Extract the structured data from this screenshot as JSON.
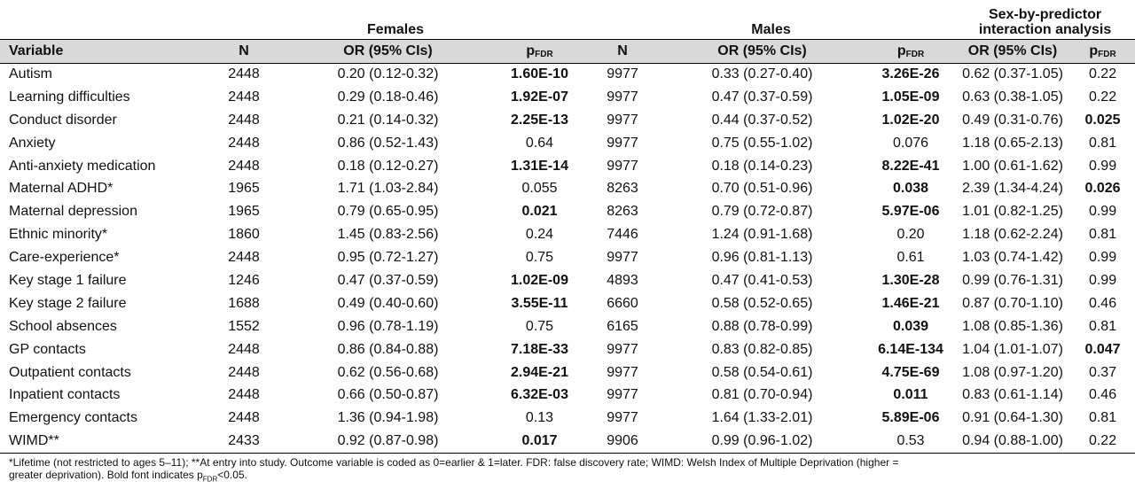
{
  "groups": {
    "females": "Females",
    "males": "Males",
    "interaction": "Sex-by-predictor interaction analysis"
  },
  "columns": {
    "variable": "Variable",
    "n": "N",
    "or": "OR (95% CIs)",
    "p_main": "p",
    "p_sub": "FDR"
  },
  "rows": [
    {
      "variable": "Autism",
      "f_n": "2448",
      "f_or": "0.20 (0.12-0.32)",
      "f_p": "1.60E-10",
      "f_p_bold": true,
      "m_n": "9977",
      "m_or": "0.33 (0.27-0.40)",
      "m_p": "3.26E-26",
      "m_p_bold": true,
      "i_or": "0.62 (0.37-1.05)",
      "i_p": "0.22",
      "i_p_bold": false
    },
    {
      "variable": "Learning difficulties",
      "f_n": "2448",
      "f_or": "0.29 (0.18-0.46)",
      "f_p": "1.92E-07",
      "f_p_bold": true,
      "m_n": "9977",
      "m_or": "0.47 (0.37-0.59)",
      "m_p": "1.05E-09",
      "m_p_bold": true,
      "i_or": "0.63 (0.38-1.05)",
      "i_p": "0.22",
      "i_p_bold": false
    },
    {
      "variable": "Conduct disorder",
      "f_n": "2448",
      "f_or": "0.21 (0.14-0.32)",
      "f_p": "2.25E-13",
      "f_p_bold": true,
      "m_n": "9977",
      "m_or": "0.44 (0.37-0.52)",
      "m_p": "1.02E-20",
      "m_p_bold": true,
      "i_or": "0.49 (0.31-0.76)",
      "i_p": "0.025",
      "i_p_bold": true
    },
    {
      "variable": "Anxiety",
      "f_n": "2448",
      "f_or": "0.86 (0.52-1.43)",
      "f_p": "0.64",
      "f_p_bold": false,
      "m_n": "9977",
      "m_or": "0.75 (0.55-1.02)",
      "m_p": "0.076",
      "m_p_bold": false,
      "i_or": "1.18 (0.65-2.13)",
      "i_p": "0.81",
      "i_p_bold": false
    },
    {
      "variable": "Anti-anxiety medication",
      "f_n": "2448",
      "f_or": "0.18 (0.12-0.27)",
      "f_p": "1.31E-14",
      "f_p_bold": true,
      "m_n": "9977",
      "m_or": "0.18 (0.14-0.23)",
      "m_p": "8.22E-41",
      "m_p_bold": true,
      "i_or": "1.00 (0.61-1.62)",
      "i_p": "0.99",
      "i_p_bold": false
    },
    {
      "variable": "Maternal ADHD*",
      "f_n": "1965",
      "f_or": "1.71 (1.03-2.84)",
      "f_p": "0.055",
      "f_p_bold": false,
      "m_n": "8263",
      "m_or": "0.70 (0.51-0.96)",
      "m_p": "0.038",
      "m_p_bold": true,
      "i_or": "2.39 (1.34-4.24)",
      "i_p": "0.026",
      "i_p_bold": true
    },
    {
      "variable": "Maternal depression",
      "f_n": "1965",
      "f_or": "0.79 (0.65-0.95)",
      "f_p": "0.021",
      "f_p_bold": true,
      "m_n": "8263",
      "m_or": "0.79 (0.72-0.87)",
      "m_p": "5.97E-06",
      "m_p_bold": true,
      "i_or": "1.01 (0.82-1.25)",
      "i_p": "0.99",
      "i_p_bold": false
    },
    {
      "variable": "Ethnic minority*",
      "f_n": "1860",
      "f_or": "1.45 (0.83-2.56)",
      "f_p": "0.24",
      "f_p_bold": false,
      "m_n": "7446",
      "m_or": "1.24 (0.91-1.68)",
      "m_p": "0.20",
      "m_p_bold": false,
      "i_or": "1.18 (0.62-2.24)",
      "i_p": "0.81",
      "i_p_bold": false
    },
    {
      "variable": "Care-experience*",
      "f_n": "2448",
      "f_or": "0.95 (0.72-1.27)",
      "f_p": "0.75",
      "f_p_bold": false,
      "m_n": "9977",
      "m_or": "0.96 (0.81-1.13)",
      "m_p": "0.61",
      "m_p_bold": false,
      "i_or": "1.03 (0.74-1.42)",
      "i_p": "0.99",
      "i_p_bold": false
    },
    {
      "variable": "Key stage 1 failure",
      "f_n": "1246",
      "f_or": "0.47 (0.37-0.59)",
      "f_p": "1.02E-09",
      "f_p_bold": true,
      "m_n": "4893",
      "m_or": "0.47 (0.41-0.53)",
      "m_p": "1.30E-28",
      "m_p_bold": true,
      "i_or": "0.99 (0.76-1.31)",
      "i_p": "0.99",
      "i_p_bold": false
    },
    {
      "variable": "Key stage 2 failure",
      "f_n": "1688",
      "f_or": "0.49 (0.40-0.60)",
      "f_p": "3.55E-11",
      "f_p_bold": true,
      "m_n": "6660",
      "m_or": "0.58 (0.52-0.65)",
      "m_p": "1.46E-21",
      "m_p_bold": true,
      "i_or": "0.87 (0.70-1.10)",
      "i_p": "0.46",
      "i_p_bold": false
    },
    {
      "variable": "School absences",
      "f_n": "1552",
      "f_or": "0.96 (0.78-1.19)",
      "f_p": "0.75",
      "f_p_bold": false,
      "m_n": "6165",
      "m_or": "0.88 (0.78-0.99)",
      "m_p": "0.039",
      "m_p_bold": true,
      "i_or": "1.08 (0.85-1.36)",
      "i_p": "0.81",
      "i_p_bold": false
    },
    {
      "variable": "GP contacts",
      "f_n": "2448",
      "f_or": "0.86 (0.84-0.88)",
      "f_p": "7.18E-33",
      "f_p_bold": true,
      "m_n": "9977",
      "m_or": "0.83 (0.82-0.85)",
      "m_p": "6.14E-134",
      "m_p_bold": true,
      "i_or": "1.04 (1.01-1.07)",
      "i_p": "0.047",
      "i_p_bold": true
    },
    {
      "variable": "Outpatient contacts",
      "f_n": "2448",
      "f_or": "0.62 (0.56-0.68)",
      "f_p": "2.94E-21",
      "f_p_bold": true,
      "m_n": "9977",
      "m_or": "0.58 (0.54-0.61)",
      "m_p": "4.75E-69",
      "m_p_bold": true,
      "i_or": "1.08 (0.97-1.20)",
      "i_p": "0.37",
      "i_p_bold": false
    },
    {
      "variable": "Inpatient contacts",
      "f_n": "2448",
      "f_or": "0.66 (0.50-0.87)",
      "f_p": "6.32E-03",
      "f_p_bold": true,
      "m_n": "9977",
      "m_or": "0.81 (0.70-0.94)",
      "m_p": "0.011",
      "m_p_bold": true,
      "i_or": "0.83 (0.61-1.14)",
      "i_p": "0.46",
      "i_p_bold": false
    },
    {
      "variable": "Emergency contacts",
      "f_n": "2448",
      "f_or": "1.36 (0.94-1.98)",
      "f_p": "0.13",
      "f_p_bold": false,
      "m_n": "9977",
      "m_or": "1.64 (1.33-2.01)",
      "m_p": "5.89E-06",
      "m_p_bold": true,
      "i_or": "0.91 (0.64-1.30)",
      "i_p": "0.81",
      "i_p_bold": false
    },
    {
      "variable": "WIMD**",
      "f_n": "2433",
      "f_or": "0.92 (0.87-0.98)",
      "f_p": "0.017",
      "f_p_bold": true,
      "m_n": "9906",
      "m_or": "0.99 (0.96-1.02)",
      "m_p": "0.53",
      "m_p_bold": false,
      "i_or": "0.94 (0.88-1.00)",
      "i_p": "0.22",
      "i_p_bold": false
    }
  ],
  "footnote": {
    "line1": "*Lifetime (not restricted to ages 5–11); **At entry into study. Outcome variable is coded as 0=earlier & 1=later. FDR: false discovery rate; WIMD: Welsh Index of Multiple Deprivation (higher =",
    "line2_pre": "greater deprivation). Bold font indicates p",
    "line2_sub": "FDR",
    "line2_post": "<0.05."
  }
}
